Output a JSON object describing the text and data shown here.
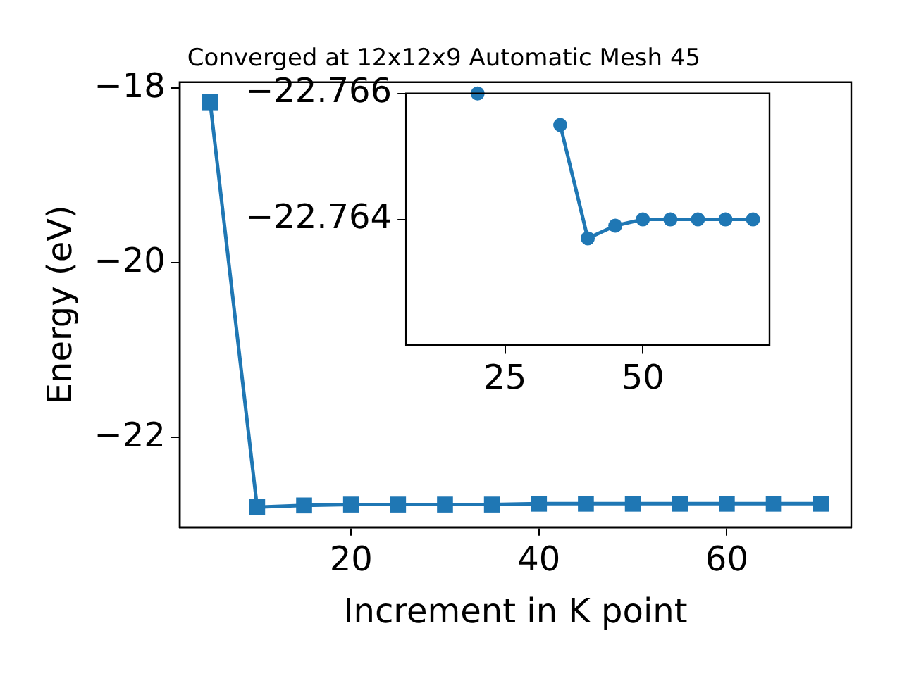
{
  "chart_data": [
    {
      "type": "line",
      "title": "Converged at 12x12x9 Automatic Mesh 45",
      "xlabel": "Increment in K point",
      "ylabel": "Energy (eV)",
      "x": [
        5,
        10,
        15,
        20,
        25,
        30,
        35,
        40,
        45,
        50,
        55,
        60,
        65,
        70
      ],
      "series": [
        {
          "color": "#1f77b4",
          "values": [
            -18.16,
            -22.8,
            -22.78,
            -22.77,
            -22.77,
            -22.77,
            -22.77,
            -22.76,
            -22.76,
            -22.76,
            -22.76,
            -22.76,
            -22.76,
            -22.76
          ]
        }
      ],
      "xlim": [
        1.75,
        73.25
      ],
      "ylim": [
        -23.03,
        -17.93
      ],
      "xticks": [
        20,
        40,
        60
      ],
      "yticks": [
        {
          "value": -18,
          "label": "−18"
        },
        {
          "value": -20,
          "label": "−20"
        },
        {
          "value": -22,
          "label": "−22"
        }
      ],
      "grid": false,
      "legend": false,
      "marker": "square",
      "line_style": "solid"
    },
    {
      "type": "line",
      "x": [
        20,
        25,
        30,
        35,
        40,
        45,
        50,
        55,
        60,
        65,
        70
      ],
      "series": [
        {
          "color": "#1f77b4",
          "values": [
            -22.766,
            null,
            null,
            -22.7655,
            -22.7637,
            -22.7639,
            -22.764,
            -22.764,
            -22.764,
            -22.764,
            -22.764
          ]
        }
      ],
      "xlim": [
        7,
        73
      ],
      "ylim": [
        -22.762,
        -22.766
      ],
      "xticks": [
        25,
        50
      ],
      "yticks": [
        {
          "value": -22.766,
          "label": "−22.766"
        },
        {
          "value": -22.764,
          "label": "−22.764"
        }
      ],
      "grid": false,
      "legend": false,
      "marker": "circle",
      "line_style": "solid"
    }
  ]
}
